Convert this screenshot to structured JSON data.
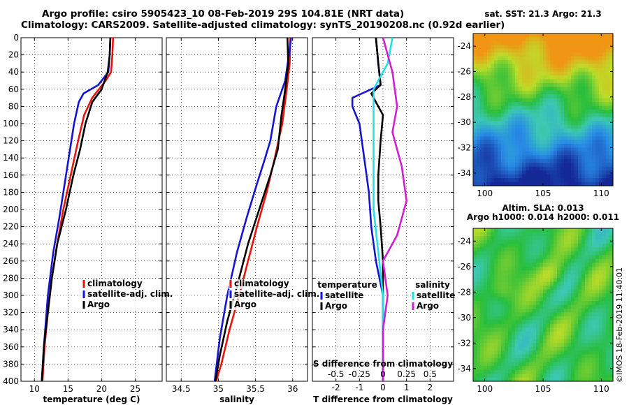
{
  "header": {
    "title_line1": "Argo profile: csiro 5905423_10 08-Feb-2019 29S 104.81E (NRT data)",
    "title_line2": "Climatology: CARS2009. Satellite-adjusted climatology: synTS_20190208.nc (0.92d earlier)"
  },
  "credit": "©IMOS 18-Feb-2019 11:40:01",
  "colors": {
    "climatology": "#e8140c",
    "satellite": "#1414d2",
    "argo": "#000000",
    "satellite_sal": "#22e0e6",
    "argo_sal": "#d21ed2"
  },
  "chart_data": [
    {
      "type": "line",
      "id": "temperature",
      "xlabel": "temperature (deg C)",
      "ylabel": "",
      "xlim": [
        8,
        29
      ],
      "ylim": [
        400,
        0
      ],
      "xticks": [
        10,
        15,
        20,
        25
      ],
      "yticks": [
        0,
        20,
        40,
        60,
        80,
        100,
        120,
        140,
        160,
        180,
        200,
        220,
        240,
        260,
        280,
        300,
        320,
        340,
        360,
        380,
        400
      ],
      "grid": true,
      "legend": [
        "climatology",
        "satellite-adj. clim.",
        "Argo"
      ],
      "series": [
        {
          "name": "climatology",
          "color": "#e8140c",
          "points": [
            [
              21.7,
              0
            ],
            [
              21.6,
              20
            ],
            [
              21.4,
              40
            ],
            [
              20.6,
              50
            ],
            [
              18.6,
              70
            ],
            [
              17.4,
              90
            ],
            [
              16.5,
              120
            ],
            [
              15.4,
              160
            ],
            [
              14.3,
              200
            ],
            [
              13.4,
              240
            ],
            [
              12.6,
              280
            ],
            [
              12.0,
              320
            ],
            [
              11.5,
              360
            ],
            [
              11.2,
              400
            ]
          ]
        },
        {
          "name": "satellite-adj. clim.",
          "color": "#1414d2",
          "points": [
            [
              21.3,
              0
            ],
            [
              21.2,
              20
            ],
            [
              21.0,
              40
            ],
            [
              19.5,
              55
            ],
            [
              17.3,
              65
            ],
            [
              16.6,
              75
            ],
            [
              15.9,
              100
            ],
            [
              15.1,
              140
            ],
            [
              14.3,
              180
            ],
            [
              13.7,
              210
            ],
            [
              12.8,
              250
            ],
            [
              12.0,
              300
            ],
            [
              11.5,
              350
            ],
            [
              11.1,
              400
            ]
          ]
        },
        {
          "name": "Argo",
          "color": "#000000",
          "points": [
            [
              21.3,
              0
            ],
            [
              21.2,
              20
            ],
            [
              20.9,
              40
            ],
            [
              20.0,
              60
            ],
            [
              18.6,
              75
            ],
            [
              17.6,
              100
            ],
            [
              16.8,
              130
            ],
            [
              15.8,
              160
            ],
            [
              14.7,
              200
            ],
            [
              13.4,
              240
            ],
            [
              12.6,
              280
            ],
            [
              12.0,
              320
            ],
            [
              11.4,
              360
            ],
            [
              11.1,
              400
            ]
          ]
        }
      ]
    },
    {
      "type": "line",
      "id": "salinity",
      "xlabel": "salinity",
      "xlim": [
        34.3,
        36.2
      ],
      "ylim": [
        400,
        0
      ],
      "xticks": [
        34.5,
        35,
        35.5,
        36
      ],
      "yticks": [
        0,
        20,
        40,
        60,
        80,
        100,
        120,
        140,
        160,
        180,
        200,
        220,
        240,
        260,
        280,
        300,
        320,
        340,
        360,
        380,
        400
      ],
      "grid": true,
      "legend": [
        "climatology",
        "satellite-adj. clim.",
        "Argo"
      ],
      "series": [
        {
          "name": "climatology",
          "color": "#e8140c",
          "points": [
            [
              35.97,
              0
            ],
            [
              35.96,
              30
            ],
            [
              35.92,
              60
            ],
            [
              35.86,
              100
            ],
            [
              35.76,
              140
            ],
            [
              35.65,
              180
            ],
            [
              35.52,
              220
            ],
            [
              35.4,
              260
            ],
            [
              35.28,
              300
            ],
            [
              35.15,
              340
            ],
            [
              35.04,
              380
            ],
            [
              34.97,
              400
            ]
          ]
        },
        {
          "name": "satellite-adj. clim.",
          "color": "#1414d2",
          "points": [
            [
              35.98,
              0
            ],
            [
              35.95,
              20
            ],
            [
              35.9,
              50
            ],
            [
              35.78,
              80
            ],
            [
              35.7,
              120
            ],
            [
              35.63,
              140
            ],
            [
              35.52,
              170
            ],
            [
              35.38,
              210
            ],
            [
              35.25,
              250
            ],
            [
              35.12,
              300
            ],
            [
              35.02,
              350
            ],
            [
              34.95,
              400
            ]
          ]
        },
        {
          "name": "Argo",
          "color": "#000000",
          "points": [
            [
              35.93,
              0
            ],
            [
              35.94,
              30
            ],
            [
              35.9,
              60
            ],
            [
              35.85,
              90
            ],
            [
              35.8,
              130
            ],
            [
              35.7,
              160
            ],
            [
              35.55,
              200
            ],
            [
              35.4,
              240
            ],
            [
              35.25,
              290
            ],
            [
              35.12,
              330
            ],
            [
              35.02,
              370
            ],
            [
              34.96,
              400
            ]
          ]
        }
      ]
    },
    {
      "type": "line",
      "id": "difference",
      "xlabel": "T difference from climatology",
      "xlabel_top": "S difference from climatology",
      "xlim": [
        -3,
        3
      ],
      "ylim": [
        400,
        0
      ],
      "xticks": [
        -2,
        -1,
        0,
        1,
        2
      ],
      "xticks_S": [
        -0.5,
        -0.25,
        0,
        0.25,
        0.5
      ],
      "yticks": [
        0,
        20,
        40,
        60,
        80,
        100,
        120,
        140,
        160,
        180,
        200,
        220,
        240,
        260,
        280,
        300,
        320,
        340,
        360,
        380,
        400
      ],
      "grid": true,
      "legend_left_title": "temperature",
      "legend_right_title": "salinity",
      "legend_left": [
        "satellite",
        "Argo"
      ],
      "legend_right": [
        "satellite",
        "Argo"
      ],
      "series": [
        {
          "name": "T satellite",
          "color": "#1414d2",
          "points": [
            [
              -0.3,
              0
            ],
            [
              -0.2,
              30
            ],
            [
              -0.1,
              55
            ],
            [
              -1.3,
              70
            ],
            [
              -1.3,
              80
            ],
            [
              -1.0,
              100
            ],
            [
              -0.8,
              140
            ],
            [
              -0.6,
              180
            ],
            [
              -0.5,
              220
            ],
            [
              -0.3,
              260
            ],
            [
              0.0,
              300
            ],
            [
              0.0,
              400
            ]
          ]
        },
        {
          "name": "T Argo",
          "color": "#000000",
          "points": [
            [
              -0.3,
              0
            ],
            [
              -0.2,
              30
            ],
            [
              -0.1,
              55
            ],
            [
              -0.5,
              65
            ],
            [
              0.0,
              90
            ],
            [
              -0.1,
              120
            ],
            [
              -0.2,
              160
            ],
            [
              -0.2,
              190
            ],
            [
              -0.1,
              220
            ],
            [
              0.0,
              260
            ],
            [
              0.0,
              300
            ],
            [
              0.0,
              400
            ]
          ]
        },
        {
          "name": "S satellite",
          "color": "#22e0e6",
          "points": [
            [
              0.1,
              0
            ],
            [
              0.05,
              30
            ],
            [
              -0.1,
              60
            ],
            [
              -0.1,
              100
            ],
            [
              -0.1,
              150
            ],
            [
              -0.1,
              200
            ],
            [
              -0.05,
              250
            ],
            [
              0.0,
              300
            ],
            [
              0.0,
              350
            ],
            [
              0.0,
              400
            ]
          ]
        },
        {
          "name": "S Argo",
          "color": "#d21ed2",
          "points": [
            [
              0.0,
              0
            ],
            [
              0.1,
              40
            ],
            [
              0.15,
              80
            ],
            [
              0.1,
              110
            ],
            [
              0.2,
              150
            ],
            [
              0.25,
              190
            ],
            [
              0.15,
              230
            ],
            [
              0.0,
              260
            ],
            [
              0.05,
              300
            ],
            [
              0.0,
              340
            ],
            [
              0.0,
              400
            ]
          ]
        }
      ]
    },
    {
      "type": "heatmap",
      "id": "sst_map",
      "title": "sat. SST: 21.3 Argo: 21.3",
      "xlim": [
        99,
        111
      ],
      "ylim": [
        -35,
        -23
      ],
      "xticks": [
        100,
        105,
        110
      ],
      "yticks": [
        -24,
        -26,
        -28,
        -30,
        -32,
        -34
      ]
    },
    {
      "type": "heatmap",
      "id": "sla_map",
      "title": "Altim. SLA: 0.013",
      "subtitle": "Argo h1000: 0.014 h2000: 0.011",
      "xlim": [
        99,
        111
      ],
      "ylim": [
        -35,
        -23
      ],
      "xticks": [
        100,
        105,
        110
      ],
      "yticks": [
        -24,
        -26,
        -28,
        -30,
        -32,
        -34
      ]
    }
  ]
}
